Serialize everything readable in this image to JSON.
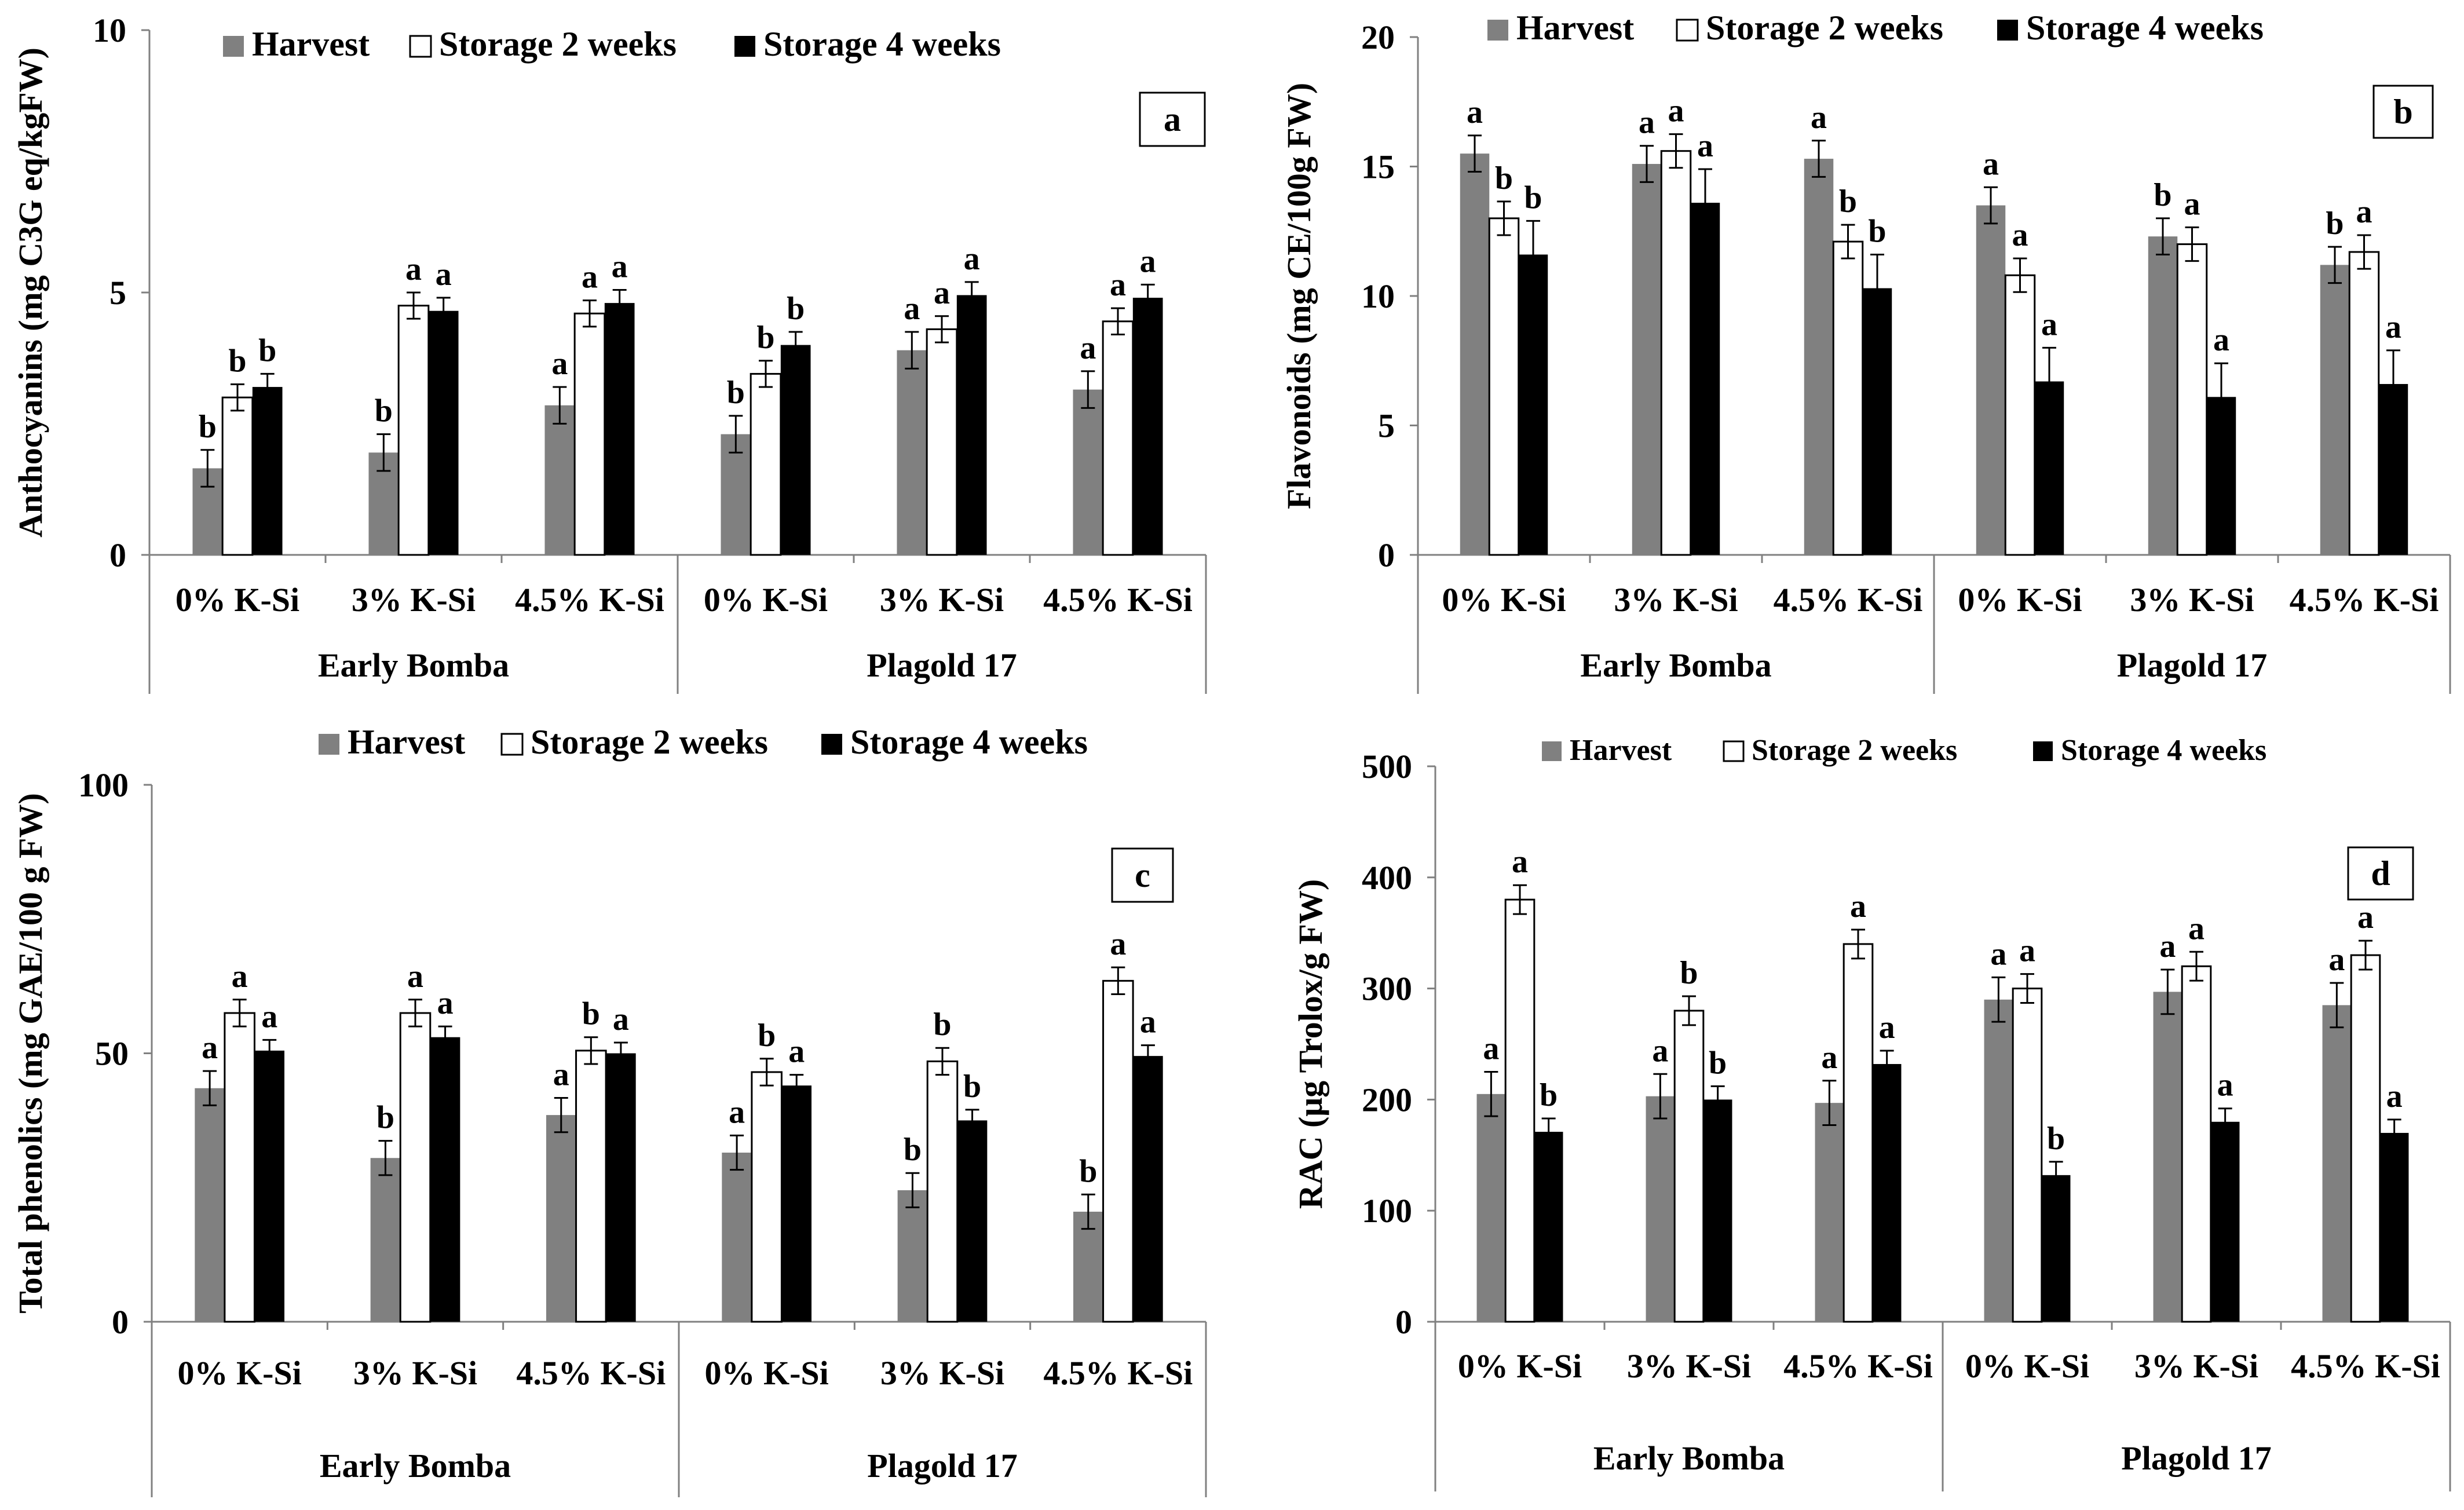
{
  "chart_data": [
    {
      "type": "bar",
      "panel_label": "a",
      "ylabel": "Anthocyanins (mg C3G eq/kgFW)",
      "ylim": [
        0,
        10
      ],
      "yticks": [
        "0",
        "5",
        "10"
      ],
      "ytick_values": [
        0,
        5,
        10
      ],
      "categories": [
        "0% K-Si",
        "3% K-Si",
        "4.5% K-Si",
        "0% K-Si",
        "3% K-Si",
        "4.5% K-Si"
      ],
      "groups": [
        "Early Bomba",
        "Plagold 17"
      ],
      "legend": [
        "Harvest",
        "Storage 2 weeks",
        "Storage 4 weeks"
      ],
      "series": [
        {
          "name": "Harvest",
          "color": "#808080",
          "values": [
            1.65,
            1.95,
            2.85,
            2.3,
            3.9,
            3.15
          ],
          "errors": [
            0.35,
            0.35,
            0.35,
            0.35,
            0.35,
            0.35
          ],
          "letters": [
            "b",
            "b",
            "a",
            "b",
            "a",
            "a"
          ]
        },
        {
          "name": "Storage 2 weeks",
          "color": "#ffffff",
          "values": [
            3.0,
            4.75,
            4.6,
            3.45,
            4.3,
            4.45
          ],
          "errors": [
            0.25,
            0.25,
            0.25,
            0.25,
            0.25,
            0.25
          ],
          "letters": [
            "b",
            "a",
            "a",
            "b",
            "a",
            "a"
          ]
        },
        {
          "name": "Storage 4 weeks",
          "color": "#000000",
          "values": [
            3.2,
            4.65,
            4.8,
            4.0,
            4.95,
            4.9
          ],
          "errors": [
            0.25,
            0.25,
            0.25,
            0.25,
            0.25,
            0.25
          ],
          "letters": [
            "b",
            "a",
            "a",
            "b",
            "a",
            "a"
          ]
        }
      ]
    },
    {
      "type": "bar",
      "panel_label": "b",
      "ylabel": "Flavonoids (mg CE/100g FW)",
      "ylim": [
        0,
        20
      ],
      "yticks": [
        "0",
        "5",
        "10",
        "15",
        "20"
      ],
      "ytick_values": [
        0,
        5,
        10,
        15,
        20
      ],
      "categories": [
        "0% K-Si",
        "3% K-Si",
        "4.5% K-Si",
        "0% K-Si",
        "3% K-Si",
        "4.5% K-Si"
      ],
      "groups": [
        "Early Bomba",
        "Plagold 17"
      ],
      "legend": [
        "Harvest",
        "Storage 2 weeks",
        "Storage 4 weeks"
      ],
      "series": [
        {
          "name": "Harvest",
          "color": "#808080",
          "values": [
            15.5,
            15.1,
            15.3,
            13.5,
            12.3,
            11.2
          ],
          "errors": [
            0.7,
            0.7,
            0.7,
            0.7,
            0.7,
            0.7
          ],
          "letters": [
            "a",
            "a",
            "a",
            "a",
            "b",
            "b"
          ]
        },
        {
          "name": "Storage 2 weeks",
          "color": "#ffffff",
          "values": [
            13.0,
            15.6,
            12.1,
            10.8,
            12.0,
            11.7
          ],
          "errors": [
            0.65,
            0.65,
            0.65,
            0.65,
            0.65,
            0.65
          ],
          "letters": [
            "b",
            "a",
            "b",
            "a",
            "a",
            "a"
          ]
        },
        {
          "name": "Storage 4 weeks",
          "color": "#000000",
          "values": [
            11.6,
            13.6,
            10.3,
            6.7,
            6.1,
            6.6
          ],
          "errors": [
            1.3,
            1.3,
            1.3,
            1.3,
            1.3,
            1.3
          ],
          "letters": [
            "b",
            "a",
            "b",
            "a",
            "a",
            "a"
          ]
        }
      ]
    },
    {
      "type": "bar",
      "panel_label": "c",
      "ylabel": "Total phenolics (mg GAE/100 g FW)",
      "ylim": [
        0,
        100
      ],
      "yticks": [
        "0",
        "50",
        "100"
      ],
      "ytick_values": [
        0,
        50,
        100
      ],
      "categories": [
        "0% K-Si",
        "3% K-Si",
        "4.5% K-Si",
        "0% K-Si",
        "3% K-Si",
        "4.5% K-Si"
      ],
      "groups": [
        "Early Bomba",
        "Plagold 17"
      ],
      "legend": [
        "Harvest",
        "Storage 2 weeks",
        "Storage 4 weeks"
      ],
      "series": [
        {
          "name": "Harvest",
          "color": "#808080",
          "values": [
            43.5,
            30.5,
            38.5,
            31.5,
            24.5,
            20.5
          ],
          "errors": [
            3.2,
            3.2,
            3.2,
            3.2,
            3.2,
            3.2
          ],
          "letters": [
            "a",
            "b",
            "a",
            "a",
            "b",
            "b"
          ]
        },
        {
          "name": "Storage 2 weeks",
          "color": "#ffffff",
          "values": [
            57.5,
            57.5,
            50.5,
            46.5,
            48.5,
            63.5
          ],
          "errors": [
            2.5,
            2.5,
            2.5,
            2.5,
            2.5,
            2.5
          ],
          "letters": [
            "a",
            "a",
            "b",
            "b",
            "b",
            "a"
          ]
        },
        {
          "name": "Storage 4 weeks",
          "color": "#000000",
          "values": [
            50.5,
            53.0,
            50.0,
            44.0,
            37.5,
            49.5
          ],
          "errors": [
            2.0,
            2.0,
            2.0,
            2.0,
            2.0,
            2.0
          ],
          "letters": [
            "a",
            "a",
            "a",
            "a",
            "b",
            "a"
          ]
        }
      ]
    },
    {
      "type": "bar",
      "panel_label": "d",
      "ylabel": "RAC (μg Trolox/g FW)",
      "ylim": [
        0,
        500
      ],
      "yticks": [
        "0",
        "100",
        "200",
        "300",
        "400",
        "500"
      ],
      "ytick_values": [
        0,
        100,
        200,
        300,
        400,
        500
      ],
      "categories": [
        "0% K-Si",
        "3% K-Si",
        "4.5% K-Si",
        "0% K-Si",
        "3% K-Si",
        "4.5% K-Si"
      ],
      "groups": [
        "Early Bomba",
        "Plagold 17"
      ],
      "legend": [
        "Harvest",
        "Storage 2 weeks",
        "Storage 4 weeks"
      ],
      "series": [
        {
          "name": "Harvest",
          "color": "#808080",
          "values": [
            205,
            203,
            197,
            290,
            297,
            285
          ],
          "errors": [
            20,
            20,
            20,
            20,
            20,
            20
          ],
          "letters": [
            "a",
            "a",
            "a",
            "a",
            "a",
            "a"
          ]
        },
        {
          "name": "Storage 2 weeks",
          "color": "#ffffff",
          "values": [
            380,
            280,
            340,
            300,
            320,
            330
          ],
          "errors": [
            13,
            13,
            13,
            13,
            13,
            13
          ],
          "letters": [
            "a",
            "b",
            "a",
            "a",
            "a",
            "a"
          ]
        },
        {
          "name": "Storage 4 weeks",
          "color": "#000000",
          "values": [
            171,
            200,
            232,
            132,
            180,
            170
          ],
          "errors": [
            12,
            12,
            12,
            12,
            12,
            12
          ],
          "letters": [
            "b",
            "b",
            "a",
            "b",
            "a",
            "a"
          ]
        }
      ]
    }
  ]
}
